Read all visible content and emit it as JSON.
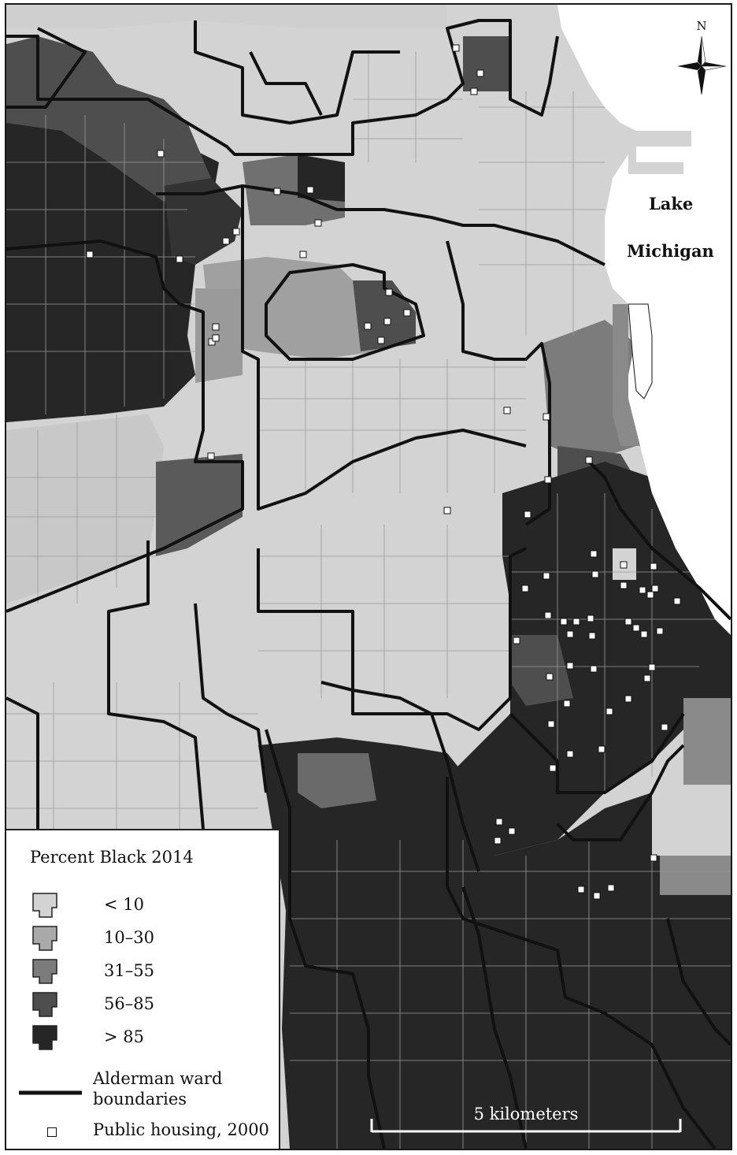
{
  "map": {
    "water_label_line1": "Lake",
    "water_label_line2": "Michigan",
    "compass_label": "N",
    "scale_label": "5 kilometers"
  },
  "legend": {
    "title": "Percent Black 2014",
    "classes": [
      {
        "label": "< 10",
        "color": "#d3d3d3"
      },
      {
        "label": "10–30",
        "color": "#a9a9a9"
      },
      {
        "label": "31–55",
        "color": "#7c7c7c"
      },
      {
        "label": "56–85",
        "color": "#4e4e4e"
      },
      {
        "label": "> 85",
        "color": "#262626"
      }
    ],
    "ward_label_line1": "Alderman ward",
    "ward_label_line2": "boundaries",
    "public_housing_label": "Public housing, 2000"
  },
  "colors": {
    "water": "#ffffff",
    "boundary": "#111111",
    "tract_line": "#9a9a9a"
  }
}
